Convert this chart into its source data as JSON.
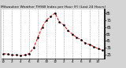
{
  "title": "Milwaukee Weather THSW Index per Hour (F) (Last 24 Hours)",
  "bg_color": "#d4d4d4",
  "plot_bg_color": "#ffffff",
  "line_color": "#dd0000",
  "marker_color": "#000000",
  "grid_color": "#888888",
  "ylim": [
    20,
    90
  ],
  "yticks": [
    25,
    35,
    45,
    55,
    65,
    75,
    85
  ],
  "ytick_labels": [
    "25",
    "35",
    "45",
    "55",
    "65",
    "75",
    "85"
  ],
  "hours": [
    0,
    1,
    2,
    3,
    4,
    5,
    6,
    7,
    8,
    9,
    10,
    11,
    12,
    13,
    14,
    15,
    16,
    17,
    18,
    19,
    20,
    21,
    22,
    23
  ],
  "x_tick_positions": [
    0,
    2,
    4,
    6,
    8,
    10,
    12,
    14,
    16,
    18,
    20,
    22
  ],
  "x_tick_labels": [
    "12",
    "2",
    "4",
    "6",
    "8",
    "10",
    "12",
    "2",
    "4",
    "6",
    "8",
    "10"
  ],
  "values": [
    27,
    26,
    25,
    25,
    24,
    25,
    27,
    35,
    50,
    65,
    75,
    80,
    85,
    72,
    68,
    60,
    55,
    50,
    47,
    42,
    40,
    37,
    34,
    32
  ]
}
